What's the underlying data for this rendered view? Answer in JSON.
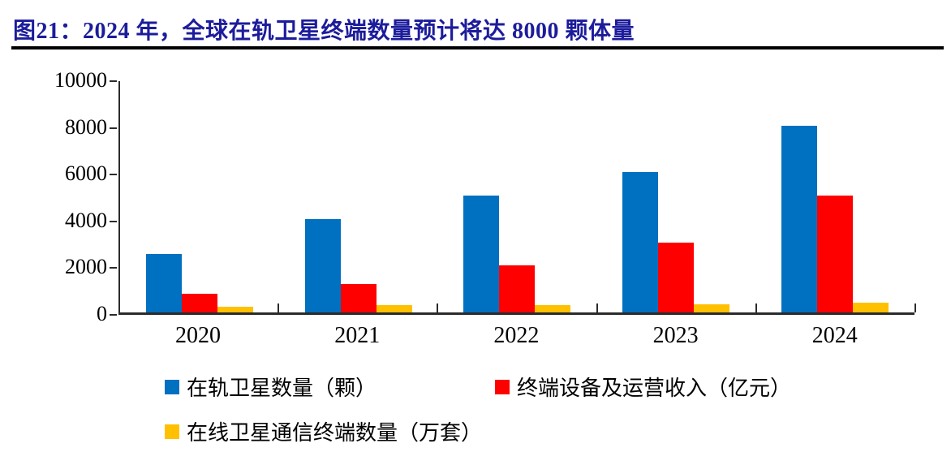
{
  "title": "图21：2024 年，全球在轨卫星终端数量预计将达 8000 颗体量",
  "colors": {
    "title": "#1c1c9c",
    "axis": "#2b2b2b",
    "blue": "#0070c0",
    "red": "#ff0000",
    "yellow": "#ffc000"
  },
  "chart_data": {
    "type": "bar",
    "categories": [
      "2020",
      "2021",
      "2022",
      "2023",
      "2024"
    ],
    "series": [
      {
        "name": "在轨卫星数量（颗）",
        "color_key": "blue",
        "values": [
          2500,
          4000,
          5000,
          6000,
          8000
        ]
      },
      {
        "name": "终端设备及运营收入（亿元）",
        "color_key": "red",
        "values": [
          800,
          1200,
          2000,
          3000,
          5000
        ]
      },
      {
        "name": "在线卫星通信终端数量（万套）",
        "color_key": "yellow",
        "values": [
          250,
          300,
          300,
          350,
          400
        ]
      }
    ],
    "title": "图21：2024 年，全球在轨卫星终端数量预计将达 8000 颗体量",
    "xlabel": "",
    "ylabel": "",
    "ylim": [
      0,
      10000
    ],
    "yticks": [
      0,
      2000,
      4000,
      6000,
      8000,
      10000
    ],
    "grid": false,
    "legend_position": "bottom"
  }
}
